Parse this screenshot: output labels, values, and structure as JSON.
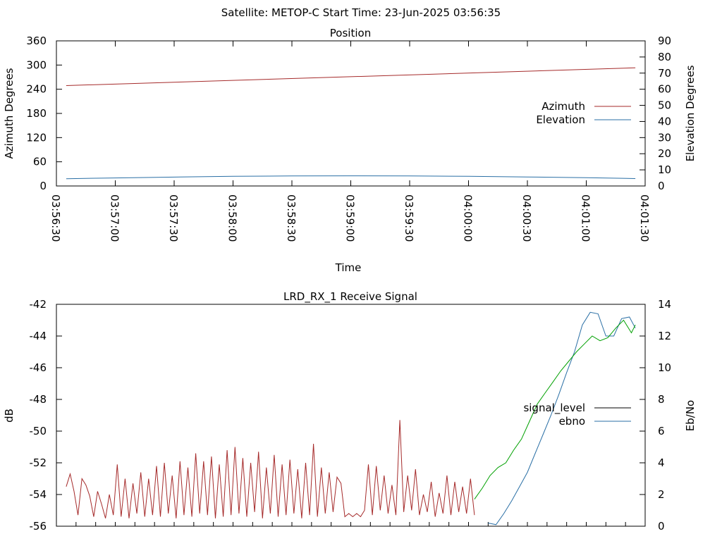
{
  "page_title": "Satellite: METOP-C    Start Time: 23-Jun-2025 03:56:35",
  "chart_data": [
    {
      "type": "line",
      "title": "Position",
      "xlabel": "Time",
      "ylabel": "Azimuth Degrees",
      "y2label": "Elevation Degrees",
      "xticks": [
        "03:56:30",
        "03:57:00",
        "03:57:30",
        "03:58:00",
        "03:58:30",
        "03:59:00",
        "03:59:30",
        "04:00:00",
        "04:00:30",
        "04:01:00",
        "04:01:30"
      ],
      "xlim": [
        "03:56:30",
        "04:01:30"
      ],
      "ylim": [
        0,
        360
      ],
      "yticks": [
        "0",
        "60",
        "120",
        "180",
        "240",
        "300",
        "360"
      ],
      "y2lim": [
        0,
        90
      ],
      "y2ticks": [
        "0",
        "10",
        "20",
        "30",
        "40",
        "50",
        "60",
        "70",
        "80",
        "90"
      ],
      "legend": "right",
      "series": [
        {
          "name": "Azimuth",
          "axis": "left",
          "color": "#a52a2a",
          "x": [
            "03:56:35",
            "04:01:25"
          ],
          "values": [
            249,
            293
          ]
        },
        {
          "name": "Elevation",
          "axis": "right",
          "color": "#2a6fa5",
          "x": [
            "03:56:35",
            "03:57:00",
            "03:57:30",
            "03:58:00",
            "03:58:30",
            "03:59:00",
            "03:59:30",
            "04:00:00",
            "04:00:30",
            "04:01:00",
            "04:01:25"
          ],
          "values": [
            4.5,
            5.0,
            5.5,
            6.0,
            6.2,
            6.3,
            6.2,
            6.0,
            5.6,
            5.1,
            4.6
          ]
        }
      ]
    },
    {
      "type": "line",
      "title": "LRD_RX_1 Receive Signal",
      "ylabel": "dB",
      "y2label": "Eb/No",
      "ylim": [
        -56,
        -42
      ],
      "yticks": [
        "-56",
        "-54",
        "-52",
        "-50",
        "-48",
        "-46",
        "-44",
        "-42"
      ],
      "y2lim": [
        0,
        14
      ],
      "y2ticks": [
        "0",
        "2",
        "4",
        "6",
        "8",
        "10",
        "12",
        "14"
      ],
      "legend": "right",
      "series": [
        {
          "name": "signal_level",
          "axis": "left",
          "color": "#000000",
          "segments": [
            {
              "color": "#a52a2a",
              "x": [
                "03:56:35",
                "03:56:37",
                "03:56:39",
                "03:56:41",
                "03:56:43",
                "03:56:45",
                "03:56:47",
                "03:56:49",
                "03:56:51",
                "03:56:53",
                "03:56:55",
                "03:56:57",
                "03:56:59",
                "03:57:01",
                "03:57:03",
                "03:57:05",
                "03:57:07",
                "03:57:09",
                "03:57:11",
                "03:57:13",
                "03:57:15",
                "03:57:17",
                "03:57:19",
                "03:57:21",
                "03:57:23",
                "03:57:25",
                "03:57:27",
                "03:57:29",
                "03:57:31",
                "03:57:33",
                "03:57:35",
                "03:57:37",
                "03:57:39",
                "03:57:41",
                "03:57:43",
                "03:57:45",
                "03:57:47",
                "03:57:49",
                "03:57:51",
                "03:57:53",
                "03:57:55",
                "03:57:57",
                "03:57:59",
                "03:58:01",
                "03:58:03",
                "03:58:05",
                "03:58:07",
                "03:58:09",
                "03:58:11",
                "03:58:13",
                "03:58:15",
                "03:58:17",
                "03:58:19",
                "03:58:21",
                "03:58:23",
                "03:58:25",
                "03:58:27",
                "03:58:29",
                "03:58:31",
                "03:58:33",
                "03:58:35",
                "03:58:37",
                "03:58:39",
                "03:58:41",
                "03:58:43",
                "03:58:45",
                "03:58:47",
                "03:58:49",
                "03:58:51",
                "03:58:53",
                "03:58:55",
                "03:58:57",
                "03:58:59",
                "03:59:01",
                "03:59:03",
                "03:59:05",
                "03:59:07",
                "03:59:09",
                "03:59:11",
                "03:59:13",
                "03:59:15",
                "03:59:17",
                "03:59:19",
                "03:59:21",
                "03:59:23",
                "03:59:25",
                "03:59:27",
                "03:59:29",
                "03:59:31",
                "03:59:33",
                "03:59:35",
                "03:59:37",
                "03:59:39",
                "03:59:41",
                "03:59:43",
                "03:59:45",
                "03:59:47",
                "03:59:49",
                "03:59:51",
                "03:59:53",
                "03:59:55",
                "03:59:57",
                "03:59:59",
                "04:00:01",
                "04:00:03"
              ],
              "values": [
                -53.5,
                -52.7,
                -53.8,
                -55.3,
                -53.0,
                -53.4,
                -54.1,
                -55.4,
                -53.8,
                -54.6,
                -55.5,
                -54.0,
                -55.3,
                -52.1,
                -55.4,
                -53.0,
                -55.5,
                -53.3,
                -55.2,
                -52.6,
                -55.4,
                -53.0,
                -55.3,
                -52.2,
                -55.4,
                -52.0,
                -55.2,
                -52.8,
                -55.5,
                -51.9,
                -55.3,
                -52.3,
                -55.4,
                -51.4,
                -55.2,
                -51.9,
                -55.3,
                -51.6,
                -55.5,
                -52.1,
                -55.4,
                -51.2,
                -55.3,
                -51.0,
                -55.2,
                -51.7,
                -55.4,
                -52.0,
                -55.1,
                -51.3,
                -55.5,
                -52.3,
                -55.2,
                -51.5,
                -55.4,
                -52.1,
                -55.3,
                -51.8,
                -55.2,
                -52.4,
                -55.5,
                -52.0,
                -55.3,
                -50.8,
                -55.4,
                -52.3,
                -55.2,
                -52.6,
                -55.1,
                -52.9,
                -53.3,
                -55.4,
                -55.2,
                -55.4,
                -55.2,
                -55.4,
                -55.0,
                -52.1,
                -55.3,
                -52.2,
                -55.0,
                -52.8,
                -55.2,
                -53.4,
                -55.3,
                -49.3,
                -55.1,
                -52.8,
                -55.0,
                -52.4,
                -55.3,
                -54.0,
                -55.1,
                -53.2,
                -55.4,
                -53.9,
                -55.2,
                -52.8,
                -55.3,
                -53.2,
                -55.1,
                -53.5,
                -55.2,
                -53.0,
                -55.3
              ]
            }
          ]
        },
        {
          "name": "ebno",
          "axis": "right",
          "color": "#2a6fa5",
          "x": [
            "04:00:10",
            "04:00:14",
            "04:00:18",
            "04:00:22",
            "04:00:26",
            "04:00:30",
            "04:00:34",
            "04:00:38",
            "04:00:42",
            "04:00:46",
            "04:00:50",
            "04:00:54",
            "04:00:58",
            "04:01:02",
            "04:01:06",
            "04:01:10",
            "04:01:14",
            "04:01:18",
            "04:01:22",
            "04:01:25"
          ],
          "values": [
            0.2,
            0.1,
            0.8,
            1.6,
            2.5,
            3.4,
            4.6,
            5.8,
            7.0,
            8.3,
            9.7,
            11.0,
            12.7,
            13.5,
            13.4,
            12.0,
            12.0,
            13.1,
            13.2,
            12.5
          ]
        }
      ]
    }
  ]
}
